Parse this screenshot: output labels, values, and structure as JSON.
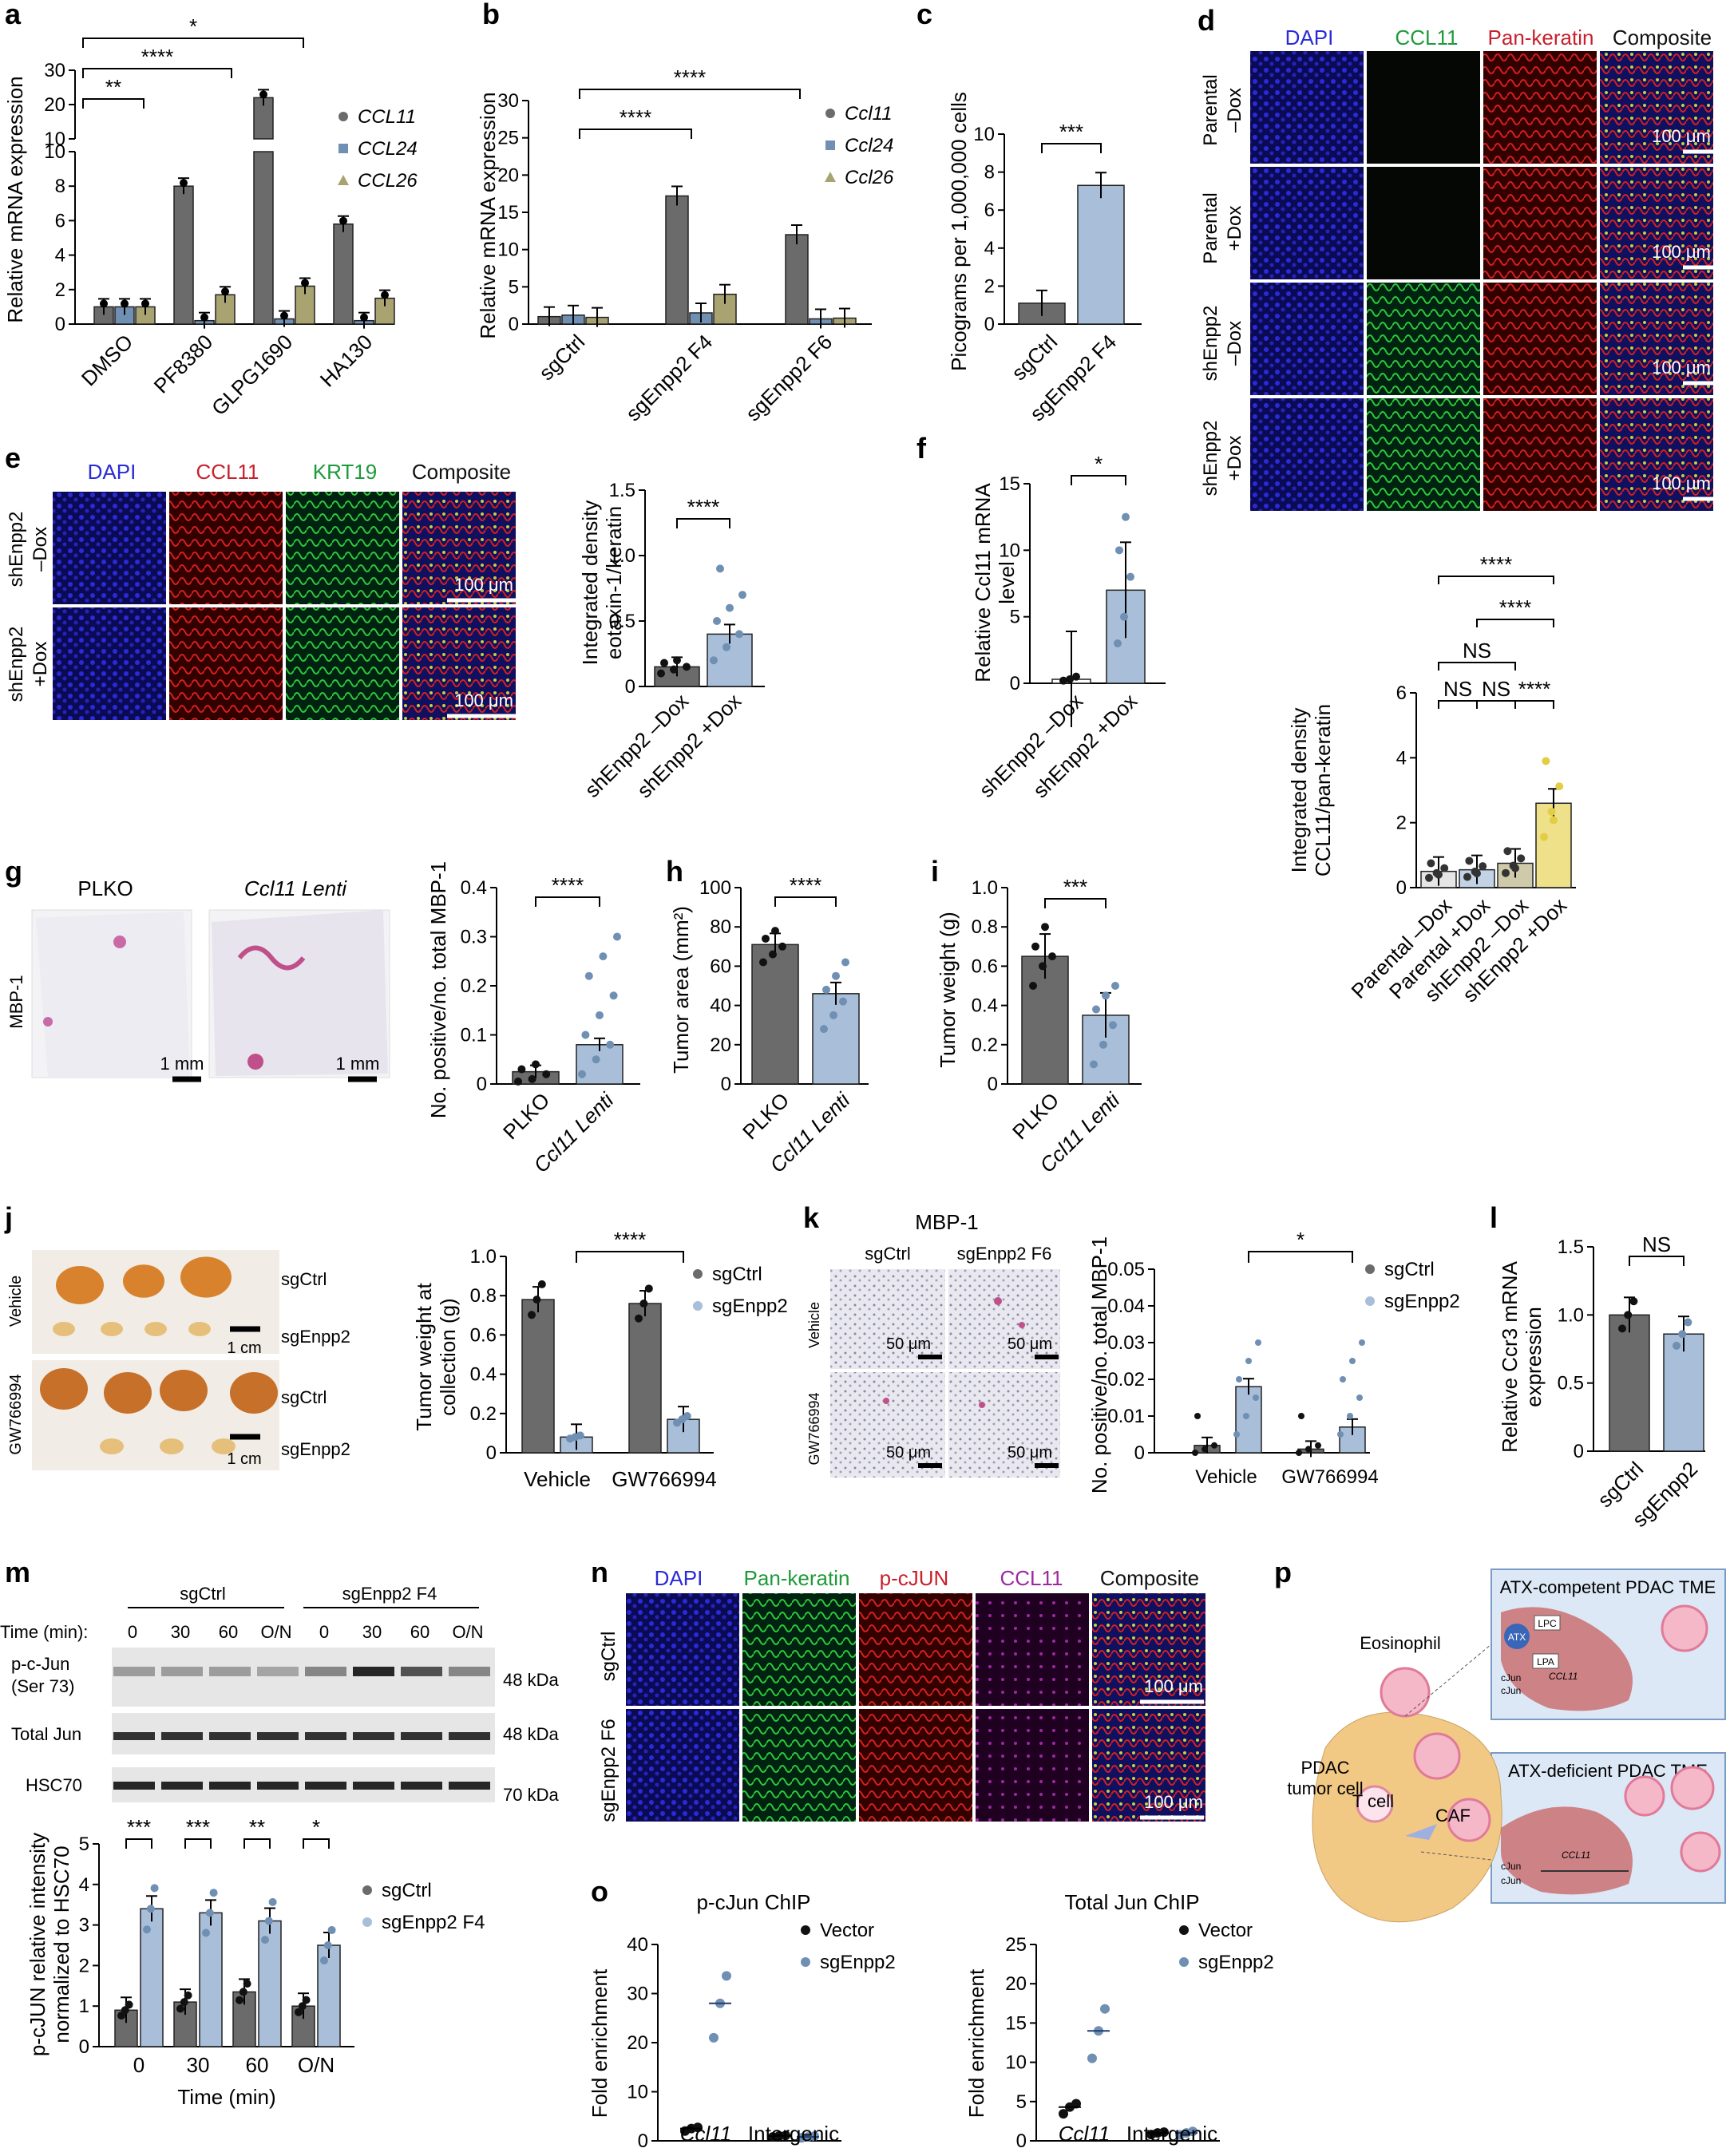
{
  "colors": {
    "dark_gray": "#6b6b6b",
    "steel_blue": "#6f8fb3",
    "light_blue": "#a9bfd9",
    "olive": "#a9a372",
    "dapi_blue": "#2a2ad8",
    "ccl11_green": "#1e9a3a",
    "red": "#c8202c",
    "purple": "#9a2aa0",
    "yellow": "#e2cd45"
  },
  "panels": {
    "a": {
      "label": "a",
      "ylabel": "Relative mRNA expression",
      "legend": [
        "CCL11",
        "CCL24",
        "CCL26"
      ],
      "sig": [
        "*",
        "****",
        "**"
      ],
      "yticks_lower": [
        "0",
        "2",
        "4",
        "6",
        "8",
        "10"
      ],
      "yticks_upper": [
        "10",
        "20",
        "30"
      ]
    },
    "b": {
      "label": "b",
      "ylabel": "Relative mRNA expression",
      "legend": [
        "Ccl11",
        "Ccl24",
        "Ccl26"
      ],
      "sig": [
        "****",
        "****"
      ],
      "yticks": [
        "0",
        "5",
        "10",
        "15",
        "20",
        "25",
        "30"
      ]
    },
    "c": {
      "label": "c",
      "ylabel": "Picograms per 1,000,000 cells",
      "sig": "***",
      "yticks": [
        "0",
        "2",
        "4",
        "6",
        "8",
        "10"
      ]
    },
    "d": {
      "label": "d",
      "channels": [
        "DAPI",
        "CCL11",
        "Pan-keratin",
        "Composite"
      ],
      "rows": [
        "Parental\n–Dox",
        "Parental\n+Dox",
        "shEnpp2\n–Dox",
        "shEnpp2\n+Dox"
      ],
      "scale": "100 μm",
      "ylabel": "Integrated density\nCCL11/pan-keratin",
      "sig": [
        "****",
        "****",
        "NS",
        "NS",
        "NS",
        "****"
      ],
      "yticks": [
        "0",
        "2",
        "4",
        "6"
      ]
    },
    "e": {
      "label": "e",
      "channels": [
        "DAPI",
        "CCL11",
        "KRT19",
        "Composite"
      ],
      "rows": [
        "shEnpp2\n–Dox",
        "shEnpp2\n+Dox"
      ],
      "scale": "100 μm",
      "ylabel": "Integrated density\neotaxin-1/keratin",
      "sig": "****",
      "yticks": [
        "0",
        "0.5",
        "1.0",
        "1.5"
      ]
    },
    "f": {
      "label": "f",
      "ylabel": "Relative Ccl11 mRNA\nlevel",
      "sig": "*",
      "yticks": [
        "0",
        "5",
        "10",
        "15"
      ]
    },
    "g": {
      "label": "g",
      "titles": [
        "PLKO",
        "Ccl11 Lenti"
      ],
      "side": "MBP-1",
      "scale": "1 mm",
      "ylabel": "No. positive/no. total MBP-1",
      "sig": "****",
      "yticks": [
        "0",
        "0.1",
        "0.2",
        "0.3",
        "0.4"
      ]
    },
    "h": {
      "label": "h",
      "ylabel": "Tumor area (mm²)",
      "sig": "****",
      "yticks": [
        "0",
        "20",
        "40",
        "60",
        "80",
        "100"
      ]
    },
    "i": {
      "label": "i",
      "ylabel": "Tumor weight (g)",
      "sig": "***",
      "yticks": [
        "0",
        "0.2",
        "0.4",
        "0.6",
        "0.8",
        "1.0"
      ]
    },
    "j": {
      "label": "j",
      "rows": [
        "Vehicle",
        "GW766994"
      ],
      "tags": [
        "sgCtrl",
        "sgEnpp2"
      ],
      "scale": "1 cm",
      "ylabel": "Tumor weight at\ncollection (g)",
      "sig": "****",
      "legend": [
        "sgCtrl",
        "sgEnpp2"
      ],
      "yticks": [
        "0",
        "0.2",
        "0.4",
        "0.6",
        "0.8",
        "1.0"
      ]
    },
    "k": {
      "label": "k",
      "title": "MBP-1",
      "cols": [
        "sgCtrl",
        "sgEnpp2 F6"
      ],
      "rows": [
        "Vehicle",
        "GW766994"
      ],
      "scale": "50 μm",
      "ylabel": "No. positive/no. total MBP-1",
      "sig": "*",
      "legend": [
        "sgCtrl",
        "sgEnpp2"
      ],
      "yticks": [
        "0",
        "0.01",
        "0.02",
        "0.03",
        "0.04",
        "0.05"
      ]
    },
    "l": {
      "label": "l",
      "ylabel": "Relative Ccr3 mRNA\nexpression",
      "sig": "NS",
      "yticks": [
        "0",
        "0.5",
        "1.0",
        "1.5"
      ]
    },
    "m": {
      "label": "m",
      "groups": [
        "sgCtrl",
        "sgEnpp2 F4"
      ],
      "time_label": "Time (min):",
      "times": [
        "0",
        "30",
        "60",
        "O/N",
        "0",
        "30",
        "60",
        "O/N"
      ],
      "blots": [
        "p-c-Jun\n(Ser 73)",
        "Total Jun",
        "HSC70"
      ],
      "kda": [
        "48 kDa",
        "48 kDa",
        "70 kDa"
      ],
      "ylabel": "p-cJUN relative intensity\nnormalized to HSC70",
      "xlabel": "Time (min)",
      "sig": [
        "***",
        "***",
        "**",
        "*"
      ],
      "legend": [
        "sgCtrl",
        "sgEnpp2 F4"
      ],
      "yticks": [
        "0",
        "1",
        "2",
        "3",
        "4",
        "5"
      ]
    },
    "n": {
      "label": "n",
      "channels": [
        "DAPI",
        "Pan-keratin",
        "p-cJUN",
        "CCL11",
        "Composite"
      ],
      "rows": [
        "sgCtrl",
        "sgEnpp2 F6"
      ],
      "scale": "100 μm"
    },
    "o": {
      "label": "o",
      "titles": [
        "p-cJun ChIP",
        "Total Jun ChIP"
      ],
      "ylabel": "Fold enrichment",
      "legend": [
        "Vector",
        "sgEnpp2"
      ],
      "yticks_left": [
        "0",
        "10",
        "20",
        "30",
        "40"
      ],
      "yticks_right": [
        "0",
        "5",
        "10",
        "15",
        "20",
        "25"
      ]
    },
    "p": {
      "label": "p",
      "box1": "ATX-competent PDAC TME",
      "box2": "ATX-deficient PDAC TME",
      "cells": [
        "Eosinophil",
        "PDAC\ntumor cell",
        "T cell",
        "CAF"
      ],
      "mol": [
        "ATX",
        "LPC",
        "LPA",
        "cJun",
        "cJun",
        "CCL11"
      ]
    }
  },
  "chart_data": [
    {
      "panel": "a",
      "type": "bar",
      "categories": [
        "DMSO",
        "PF8380",
        "GLPG1690",
        "HA130"
      ],
      "series": [
        {
          "name": "CCL11",
          "values": [
            1.0,
            8.0,
            22,
            5.8
          ]
        },
        {
          "name": "CCL24",
          "values": [
            1.0,
            0.2,
            0.3,
            0.2
          ]
        },
        {
          "name": "CCL26",
          "values": [
            1.0,
            1.7,
            2.2,
            1.5
          ]
        }
      ],
      "ylabel": "Relative mRNA expression",
      "ylim": [
        0,
        30
      ]
    },
    {
      "panel": "b",
      "type": "bar",
      "categories": [
        "sgCtrl",
        "sgEnpp2 F4",
        "sgEnpp2 F6"
      ],
      "series": [
        {
          "name": "Ccl11",
          "values": [
            1.0,
            17.2,
            12.0
          ]
        },
        {
          "name": "Ccl24",
          "values": [
            1.2,
            1.5,
            0.7
          ]
        },
        {
          "name": "Ccl26",
          "values": [
            0.9,
            4.0,
            0.8
          ]
        }
      ],
      "ylabel": "Relative mRNA expression",
      "ylim": [
        0,
        30
      ]
    },
    {
      "panel": "c",
      "type": "bar",
      "categories": [
        "sgCtrl",
        "sgEnpp2 F4"
      ],
      "values": [
        1.1,
        7.3
      ],
      "ylabel": "Picograms per 1,000,000 cells",
      "ylim": [
        0,
        10
      ]
    },
    {
      "panel": "d",
      "type": "bar",
      "categories": [
        "Parental –Dox",
        "Parental +Dox",
        "shEnpp2 –Dox",
        "shEnpp2 +Dox"
      ],
      "values": [
        0.5,
        0.55,
        0.75,
        2.6
      ],
      "ylabel": "Integrated density CCL11/pan-keratin",
      "ylim": [
        0,
        6
      ]
    },
    {
      "panel": "e",
      "type": "bar",
      "categories": [
        "shEnpp2 –Dox",
        "shEnpp2 +Dox"
      ],
      "values": [
        0.15,
        0.4
      ],
      "ylabel": "Integrated density eotaxin-1/keratin",
      "ylim": [
        0,
        1.5
      ]
    },
    {
      "panel": "f",
      "type": "bar",
      "categories": [
        "shEnpp2 –Dox",
        "shEnpp2 +Dox"
      ],
      "values": [
        0.3,
        7.0
      ],
      "ylabel": "Relative Ccl11 mRNA level",
      "ylim": [
        0,
        15
      ]
    },
    {
      "panel": "g",
      "type": "bar",
      "categories": [
        "PLKO",
        "Ccl11 Lenti"
      ],
      "values": [
        0.025,
        0.08
      ],
      "ylabel": "No. positive/no. total MBP-1",
      "ylim": [
        0,
        0.4
      ]
    },
    {
      "panel": "h",
      "type": "bar",
      "categories": [
        "PLKO",
        "Ccl11 Lenti"
      ],
      "values": [
        71,
        46
      ],
      "ylabel": "Tumor area (mm²)",
      "ylim": [
        0,
        100
      ]
    },
    {
      "panel": "i",
      "type": "bar",
      "categories": [
        "PLKO",
        "Ccl11 Lenti"
      ],
      "values": [
        0.65,
        0.35
      ],
      "ylabel": "Tumor weight (g)",
      "ylim": [
        0,
        1.0
      ]
    },
    {
      "panel": "j",
      "type": "bar",
      "categories": [
        "Vehicle",
        "GW766994"
      ],
      "series": [
        {
          "name": "sgCtrl",
          "values": [
            0.78,
            0.76
          ]
        },
        {
          "name": "sgEnpp2",
          "values": [
            0.08,
            0.17
          ]
        }
      ],
      "ylabel": "Tumor weight at collection (g)",
      "ylim": [
        0,
        1.0
      ]
    },
    {
      "panel": "k",
      "type": "bar",
      "categories": [
        "Vehicle",
        "GW766994"
      ],
      "series": [
        {
          "name": "sgCtrl",
          "values": [
            0.002,
            0.001
          ]
        },
        {
          "name": "sgEnpp2",
          "values": [
            0.018,
            0.007
          ]
        }
      ],
      "ylabel": "No. positive/no. total MBP-1",
      "ylim": [
        0,
        0.05
      ]
    },
    {
      "panel": "l",
      "type": "bar",
      "categories": [
        "sgCtrl",
        "sgEnpp2"
      ],
      "values": [
        1.0,
        0.86
      ],
      "ylabel": "Relative Ccr3 mRNA expression",
      "ylim": [
        0,
        1.5
      ]
    },
    {
      "panel": "m",
      "type": "bar",
      "categories": [
        "0",
        "30",
        "60",
        "O/N"
      ],
      "series": [
        {
          "name": "sgCtrl",
          "values": [
            0.9,
            1.1,
            1.35,
            1.0
          ]
        },
        {
          "name": "sgEnpp2 F4",
          "values": [
            3.4,
            3.3,
            3.1,
            2.5
          ]
        }
      ],
      "xlabel": "Time (min)",
      "ylabel": "p-cJUN relative intensity normalized to HSC70",
      "ylim": [
        0,
        5
      ]
    },
    {
      "panel": "o-left",
      "type": "scatter",
      "categories": [
        "Ccl11",
        "Intergenic"
      ],
      "series": [
        {
          "name": "Vector",
          "values": [
            2.5,
            1.0
          ]
        },
        {
          "name": "sgEnpp2",
          "values": [
            28,
            0.8
          ]
        }
      ],
      "ylabel": "Fold enrichment",
      "ylim": [
        0,
        40
      ]
    },
    {
      "panel": "o-right",
      "type": "scatter",
      "categories": [
        "Ccl11",
        "Intergenic"
      ],
      "series": [
        {
          "name": "Vector",
          "values": [
            4.3,
            1.0
          ]
        },
        {
          "name": "sgEnpp2",
          "values": [
            14,
            1.0
          ]
        }
      ],
      "ylabel": "Fold enrichment",
      "ylim": [
        0,
        25
      ]
    }
  ]
}
